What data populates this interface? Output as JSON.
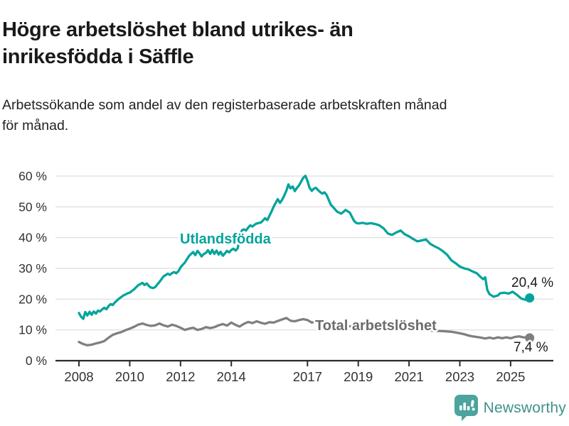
{
  "header": {
    "title": "Högre arbetslöshet bland utrikes- än inrikesfödda i Säffle",
    "subtitle": "Arbetssökande som andel av den registerbaserade arbetskraften månad för månad."
  },
  "branding": {
    "name": "Newsworthy",
    "icon": "newsworthy-bubble-chart-icon",
    "icon_color": "#4BA49D",
    "text_color": "#3F918C"
  },
  "colors": {
    "foreign_born_line": "#00A49C",
    "total_line": "#7F7F7F",
    "total_label": "#6B6B6B",
    "gridline": "#E3E3E3",
    "axis": "#2B2B2B",
    "axis_text": "#333333",
    "value_label_text": "#1A1A1A"
  },
  "chart_data": {
    "type": "line",
    "title": "Högre arbetslöshet bland utrikes- än inrikesfödda i Säffle",
    "subtitle": "Arbetssökande som andel av den registerbaserade arbetskraften månad för månad.",
    "xlabel": "",
    "ylabel": "",
    "unit": "%",
    "grid": "horizontal",
    "legend_position": "inline-labels",
    "x_axis": {
      "ticks": [
        2008,
        2010,
        2012,
        2014,
        2017,
        2019,
        2021,
        2023,
        2025
      ],
      "range": [
        2007.1,
        2026.7
      ]
    },
    "y_axis": {
      "ticks": [
        0,
        10,
        20,
        30,
        40,
        50,
        60
      ],
      "tick_suffix": " %",
      "range": [
        0,
        66
      ]
    },
    "series": [
      {
        "name": "Utlandsfödda",
        "color": "#00A49C",
        "end_label": "20,4 %",
        "end_value": 20.4,
        "points": [
          [
            2008.0,
            15.5
          ],
          [
            2008.08,
            14.3
          ],
          [
            2008.17,
            13.6
          ],
          [
            2008.25,
            15.8
          ],
          [
            2008.33,
            14.7
          ],
          [
            2008.42,
            15.9
          ],
          [
            2008.5,
            14.9
          ],
          [
            2008.58,
            16.0
          ],
          [
            2008.67,
            15.3
          ],
          [
            2008.75,
            16.3
          ],
          [
            2008.83,
            16.0
          ],
          [
            2008.92,
            16.7
          ],
          [
            2009.0,
            17.2
          ],
          [
            2009.08,
            16.7
          ],
          [
            2009.17,
            17.8
          ],
          [
            2009.25,
            18.4
          ],
          [
            2009.33,
            18.1
          ],
          [
            2009.42,
            19.0
          ],
          [
            2009.5,
            19.6
          ],
          [
            2009.58,
            20.2
          ],
          [
            2009.67,
            20.7
          ],
          [
            2009.75,
            21.2
          ],
          [
            2009.83,
            21.5
          ],
          [
            2009.92,
            21.9
          ],
          [
            2010.0,
            22.1
          ],
          [
            2010.17,
            23.2
          ],
          [
            2010.33,
            24.5
          ],
          [
            2010.5,
            25.3
          ],
          [
            2010.58,
            24.6
          ],
          [
            2010.67,
            25.1
          ],
          [
            2010.75,
            24.3
          ],
          [
            2010.83,
            23.8
          ],
          [
            2010.92,
            23.6
          ],
          [
            2011.0,
            23.9
          ],
          [
            2011.17,
            25.6
          ],
          [
            2011.33,
            27.4
          ],
          [
            2011.5,
            28.3
          ],
          [
            2011.58,
            27.9
          ],
          [
            2011.67,
            28.5
          ],
          [
            2011.75,
            28.8
          ],
          [
            2011.83,
            28.4
          ],
          [
            2011.92,
            29.1
          ],
          [
            2012.0,
            30.3
          ],
          [
            2012.08,
            31.1
          ],
          [
            2012.17,
            31.9
          ],
          [
            2012.25,
            32.9
          ],
          [
            2012.33,
            34.0
          ],
          [
            2012.42,
            34.7
          ],
          [
            2012.5,
            35.3
          ],
          [
            2012.58,
            34.3
          ],
          [
            2012.67,
            35.7
          ],
          [
            2012.75,
            34.9
          ],
          [
            2012.83,
            33.9
          ],
          [
            2012.92,
            34.7
          ],
          [
            2013.0,
            35.0
          ],
          [
            2013.08,
            35.9
          ],
          [
            2013.17,
            34.7
          ],
          [
            2013.25,
            36.0
          ],
          [
            2013.33,
            34.7
          ],
          [
            2013.42,
            35.8
          ],
          [
            2013.5,
            34.5
          ],
          [
            2013.58,
            35.4
          ],
          [
            2013.67,
            34.1
          ],
          [
            2013.75,
            34.9
          ],
          [
            2013.83,
            35.7
          ],
          [
            2013.92,
            35.2
          ],
          [
            2014.0,
            36.0
          ],
          [
            2014.08,
            36.4
          ],
          [
            2014.17,
            35.8
          ],
          [
            2014.25,
            36.5
          ],
          [
            2014.33,
            39.5
          ],
          [
            2014.42,
            42.4
          ],
          [
            2014.5,
            42.7
          ],
          [
            2014.58,
            42.3
          ],
          [
            2014.67,
            43.3
          ],
          [
            2014.75,
            44.0
          ],
          [
            2014.83,
            43.6
          ],
          [
            2014.92,
            44.2
          ],
          [
            2015.0,
            44.6
          ],
          [
            2015.17,
            44.9
          ],
          [
            2015.33,
            46.3
          ],
          [
            2015.42,
            45.7
          ],
          [
            2015.5,
            47.1
          ],
          [
            2015.58,
            48.4
          ],
          [
            2015.67,
            50.1
          ],
          [
            2015.75,
            51.3
          ],
          [
            2015.83,
            52.5
          ],
          [
            2015.92,
            51.3
          ],
          [
            2016.0,
            52.3
          ],
          [
            2016.08,
            53.6
          ],
          [
            2016.17,
            55.3
          ],
          [
            2016.25,
            57.3
          ],
          [
            2016.33,
            56.0
          ],
          [
            2016.42,
            56.6
          ],
          [
            2016.5,
            55.1
          ],
          [
            2016.58,
            56.1
          ],
          [
            2016.67,
            57.0
          ],
          [
            2016.75,
            58.2
          ],
          [
            2016.83,
            59.4
          ],
          [
            2016.92,
            60.1
          ],
          [
            2017.0,
            58.4
          ],
          [
            2017.08,
            56.2
          ],
          [
            2017.17,
            55.2
          ],
          [
            2017.25,
            55.9
          ],
          [
            2017.33,
            56.2
          ],
          [
            2017.42,
            55.4
          ],
          [
            2017.5,
            54.8
          ],
          [
            2017.58,
            54.3
          ],
          [
            2017.67,
            54.7
          ],
          [
            2017.75,
            53.9
          ],
          [
            2017.83,
            52.4
          ],
          [
            2017.92,
            50.7
          ],
          [
            2018.0,
            50.0
          ],
          [
            2018.17,
            48.4
          ],
          [
            2018.33,
            47.8
          ],
          [
            2018.5,
            49.0
          ],
          [
            2018.67,
            48.1
          ],
          [
            2018.83,
            45.5
          ],
          [
            2018.92,
            44.8
          ],
          [
            2019.0,
            44.6
          ],
          [
            2019.17,
            44.8
          ],
          [
            2019.33,
            44.5
          ],
          [
            2019.5,
            44.7
          ],
          [
            2019.67,
            44.4
          ],
          [
            2019.83,
            44.0
          ],
          [
            2020.0,
            43.0
          ],
          [
            2020.17,
            41.3
          ],
          [
            2020.33,
            40.9
          ],
          [
            2020.5,
            41.7
          ],
          [
            2020.67,
            42.3
          ],
          [
            2020.83,
            41.1
          ],
          [
            2021.0,
            40.4
          ],
          [
            2021.17,
            39.5
          ],
          [
            2021.33,
            38.8
          ],
          [
            2021.5,
            39.1
          ],
          [
            2021.67,
            39.4
          ],
          [
            2021.83,
            38.0
          ],
          [
            2022.0,
            37.2
          ],
          [
            2022.17,
            36.5
          ],
          [
            2022.33,
            35.6
          ],
          [
            2022.5,
            34.4
          ],
          [
            2022.67,
            32.6
          ],
          [
            2022.83,
            31.7
          ],
          [
            2023.0,
            30.6
          ],
          [
            2023.17,
            30.0
          ],
          [
            2023.33,
            29.7
          ],
          [
            2023.5,
            29.0
          ],
          [
            2023.67,
            28.4
          ],
          [
            2023.83,
            27.1
          ],
          [
            2023.92,
            26.5
          ],
          [
            2024.0,
            27.1
          ],
          [
            2024.08,
            23.0
          ],
          [
            2024.17,
            21.6
          ],
          [
            2024.33,
            20.8
          ],
          [
            2024.5,
            21.2
          ],
          [
            2024.58,
            21.9
          ],
          [
            2024.75,
            22.1
          ],
          [
            2024.92,
            21.8
          ],
          [
            2025.08,
            22.4
          ],
          [
            2025.25,
            21.4
          ],
          [
            2025.42,
            20.2
          ],
          [
            2025.58,
            19.8
          ],
          [
            2025.75,
            20.4
          ]
        ]
      },
      {
        "name": "Total arbetslöshet",
        "color": "#7F7F7F",
        "end_label": "7,4 %",
        "end_value": 7.4,
        "points": [
          [
            2008.0,
            6.1
          ],
          [
            2008.17,
            5.4
          ],
          [
            2008.33,
            5.0
          ],
          [
            2008.5,
            5.2
          ],
          [
            2008.67,
            5.6
          ],
          [
            2008.83,
            5.9
          ],
          [
            2009.0,
            6.4
          ],
          [
            2009.17,
            7.5
          ],
          [
            2009.33,
            8.4
          ],
          [
            2009.5,
            8.9
          ],
          [
            2009.67,
            9.3
          ],
          [
            2009.83,
            9.9
          ],
          [
            2010.0,
            10.4
          ],
          [
            2010.17,
            11.0
          ],
          [
            2010.33,
            11.7
          ],
          [
            2010.5,
            12.1
          ],
          [
            2010.67,
            11.6
          ],
          [
            2010.83,
            11.3
          ],
          [
            2011.0,
            11.5
          ],
          [
            2011.17,
            12.1
          ],
          [
            2011.33,
            11.5
          ],
          [
            2011.5,
            11.1
          ],
          [
            2011.67,
            11.7
          ],
          [
            2011.83,
            11.3
          ],
          [
            2012.0,
            10.7
          ],
          [
            2012.17,
            10.0
          ],
          [
            2012.33,
            10.4
          ],
          [
            2012.5,
            10.7
          ],
          [
            2012.67,
            10.0
          ],
          [
            2012.83,
            10.3
          ],
          [
            2013.0,
            10.9
          ],
          [
            2013.17,
            10.6
          ],
          [
            2013.33,
            10.9
          ],
          [
            2013.5,
            11.5
          ],
          [
            2013.67,
            11.9
          ],
          [
            2013.83,
            11.4
          ],
          [
            2014.0,
            12.4
          ],
          [
            2014.17,
            11.6
          ],
          [
            2014.33,
            11.1
          ],
          [
            2014.5,
            12.0
          ],
          [
            2014.67,
            12.6
          ],
          [
            2014.83,
            12.2
          ],
          [
            2015.0,
            12.8
          ],
          [
            2015.17,
            12.3
          ],
          [
            2015.33,
            12.0
          ],
          [
            2015.5,
            12.5
          ],
          [
            2015.67,
            12.4
          ],
          [
            2015.83,
            12.9
          ],
          [
            2016.0,
            13.4
          ],
          [
            2016.17,
            13.9
          ],
          [
            2016.33,
            13.0
          ],
          [
            2016.5,
            12.8
          ],
          [
            2016.67,
            13.2
          ],
          [
            2016.83,
            13.5
          ],
          [
            2017.0,
            13.2
          ],
          [
            2017.17,
            12.4
          ],
          [
            2017.33,
            12.8
          ],
          [
            2017.5,
            13.3
          ],
          [
            2017.67,
            12.9
          ],
          [
            2017.83,
            12.5
          ],
          [
            2018.0,
            12.2
          ],
          [
            2018.33,
            11.7
          ],
          [
            2018.67,
            11.2
          ],
          [
            2019.0,
            10.8
          ],
          [
            2019.33,
            10.5
          ],
          [
            2019.67,
            10.3
          ],
          [
            2020.0,
            10.6
          ],
          [
            2020.33,
            11.0
          ],
          [
            2020.67,
            10.7
          ],
          [
            2021.0,
            10.4
          ],
          [
            2021.33,
            10.1
          ],
          [
            2021.67,
            9.9
          ],
          [
            2022.0,
            9.7
          ],
          [
            2022.33,
            9.6
          ],
          [
            2022.67,
            9.4
          ],
          [
            2023.0,
            8.9
          ],
          [
            2023.17,
            8.6
          ],
          [
            2023.33,
            8.2
          ],
          [
            2023.5,
            7.9
          ],
          [
            2023.67,
            7.7
          ],
          [
            2023.83,
            7.5
          ],
          [
            2024.0,
            7.2
          ],
          [
            2024.17,
            7.5
          ],
          [
            2024.33,
            7.2
          ],
          [
            2024.5,
            7.6
          ],
          [
            2024.67,
            7.3
          ],
          [
            2024.83,
            7.6
          ],
          [
            2025.0,
            7.3
          ],
          [
            2025.17,
            7.7
          ],
          [
            2025.33,
            7.9
          ],
          [
            2025.5,
            7.6
          ],
          [
            2025.75,
            7.4
          ]
        ]
      }
    ]
  }
}
